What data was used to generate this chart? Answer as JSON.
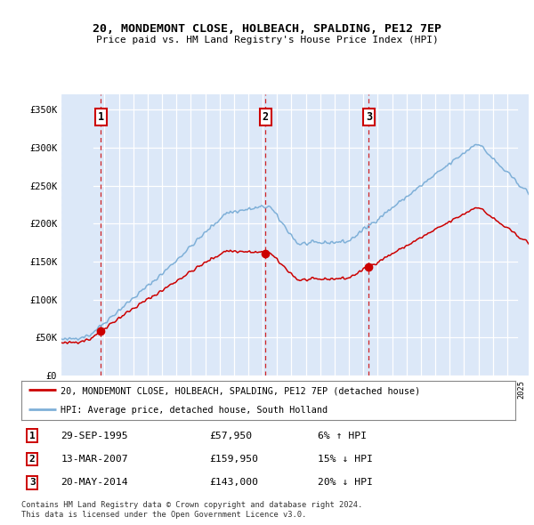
{
  "title": "20, MONDEMONT CLOSE, HOLBEACH, SPALDING, PE12 7EP",
  "subtitle": "Price paid vs. HM Land Registry's House Price Index (HPI)",
  "legend_property": "20, MONDEMONT CLOSE, HOLBEACH, SPALDING, PE12 7EP (detached house)",
  "legend_hpi": "HPI: Average price, detached house, South Holland",
  "transactions": [
    {
      "date": "1995-09-29",
      "price": 57950,
      "label": "1"
    },
    {
      "date": "2007-03-13",
      "price": 159950,
      "label": "2"
    },
    {
      "date": "2014-05-20",
      "price": 143000,
      "label": "3"
    }
  ],
  "table_rows": [
    {
      "label": "1",
      "date": "29-SEP-1995",
      "price": "£57,950",
      "change": "6% ↑ HPI"
    },
    {
      "label": "2",
      "date": "13-MAR-2007",
      "price": "£159,950",
      "change": "15% ↓ HPI"
    },
    {
      "label": "3",
      "date": "20-MAY-2014",
      "price": "£143,000",
      "change": "20% ↓ HPI"
    }
  ],
  "footer1": "Contains HM Land Registry data © Crown copyright and database right 2024.",
  "footer2": "This data is licensed under the Open Government Licence v3.0.",
  "plot_bg": "#dce8f8",
  "grid_color": "#ffffff",
  "red_line_color": "#cc0000",
  "blue_line_color": "#7fb0d8",
  "marker_color": "#cc0000",
  "ylim": [
    0,
    370000
  ],
  "yticks": [
    0,
    50000,
    100000,
    150000,
    200000,
    250000,
    300000,
    350000
  ],
  "ytick_labels": [
    "£0",
    "£50K",
    "£100K",
    "£150K",
    "£200K",
    "£250K",
    "£300K",
    "£350K"
  ]
}
